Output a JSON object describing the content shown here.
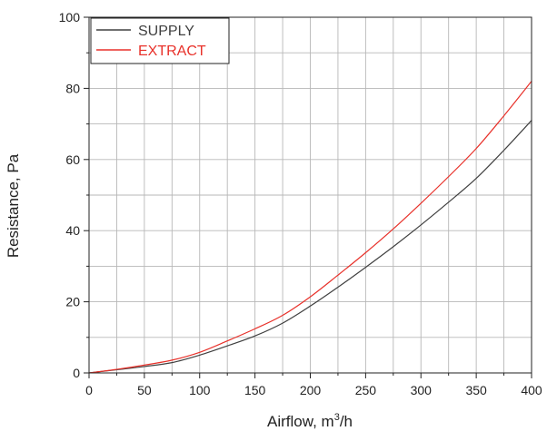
{
  "chart_data": {
    "type": "line",
    "title": "",
    "xlabel": "Airflow, m³/h",
    "xlabel_parts": {
      "prefix": "Airflow, m",
      "superscript": "3",
      "suffix": "/h"
    },
    "ylabel": "Resistance, Pa",
    "xlim": [
      0,
      400
    ],
    "ylim": [
      0,
      100
    ],
    "x_major_ticks": [
      0,
      50,
      100,
      150,
      200,
      250,
      300,
      350,
      400
    ],
    "x_minor_ticks": [
      25,
      75,
      125,
      175,
      225,
      275,
      325,
      375
    ],
    "y_major_ticks": [
      0,
      20,
      40,
      60,
      80,
      100
    ],
    "y_minor_ticks": [
      10,
      30,
      50,
      70,
      90
    ],
    "grid": true,
    "legend_position": "top-left",
    "series": [
      {
        "name": "SUPPLY",
        "color": "#404040",
        "x": [
          0,
          25,
          50,
          75,
          100,
          125,
          150,
          175,
          200,
          225,
          250,
          275,
          300,
          325,
          350,
          375,
          400
        ],
        "y": [
          0,
          0.9,
          1.8,
          2.9,
          5.0,
          7.6,
          10.4,
          14.0,
          18.8,
          24.1,
          29.7,
          35.5,
          41.6,
          48.0,
          54.7,
          62.6,
          71.0
        ]
      },
      {
        "name": "EXTRACT",
        "color": "#e8312a",
        "x": [
          0,
          25,
          50,
          75,
          100,
          125,
          150,
          175,
          200,
          225,
          250,
          275,
          300,
          325,
          350,
          375,
          400
        ],
        "y": [
          0,
          1.0,
          2.2,
          3.6,
          5.8,
          9.0,
          12.4,
          16.2,
          21.4,
          27.5,
          33.8,
          40.5,
          47.7,
          55.2,
          63.1,
          72.3,
          82.0
        ]
      }
    ]
  }
}
